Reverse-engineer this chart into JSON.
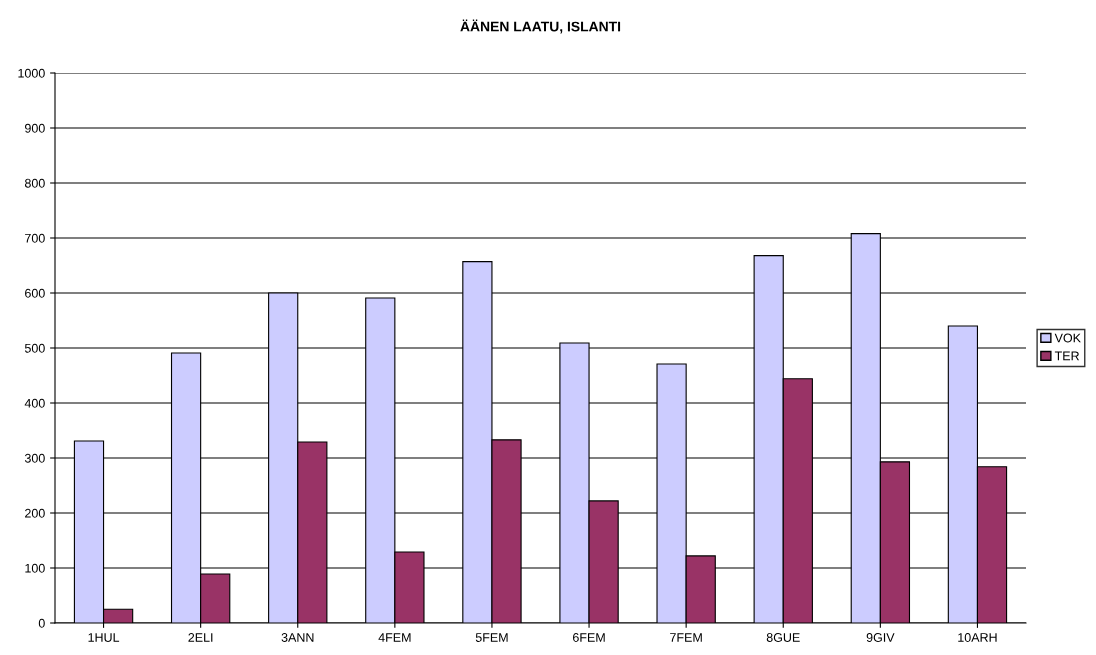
{
  "chart_data": {
    "type": "bar",
    "title": "ÄÄNEN LAATU, ISLANTI",
    "categories": [
      "1HUL",
      "2ELI",
      "3ANN",
      "4FEM",
      "5FEM",
      "6FEM",
      "7FEM",
      "8GUE",
      "9GIV",
      "10ARH"
    ],
    "series": [
      {
        "name": "VOK",
        "color": "#ccccff",
        "values": [
          331,
          491,
          600,
          591,
          657,
          509,
          471,
          668,
          708,
          540
        ]
      },
      {
        "name": "TER",
        "color": "#993366",
        "values": [
          25,
          89,
          329,
          129,
          333,
          222,
          122,
          444,
          293,
          284
        ]
      }
    ],
    "ylim": [
      0,
      1000
    ],
    "yticks": [
      0,
      100,
      200,
      300,
      400,
      500,
      600,
      700,
      800,
      900,
      1000
    ],
    "grid": "y",
    "legend": "right"
  }
}
